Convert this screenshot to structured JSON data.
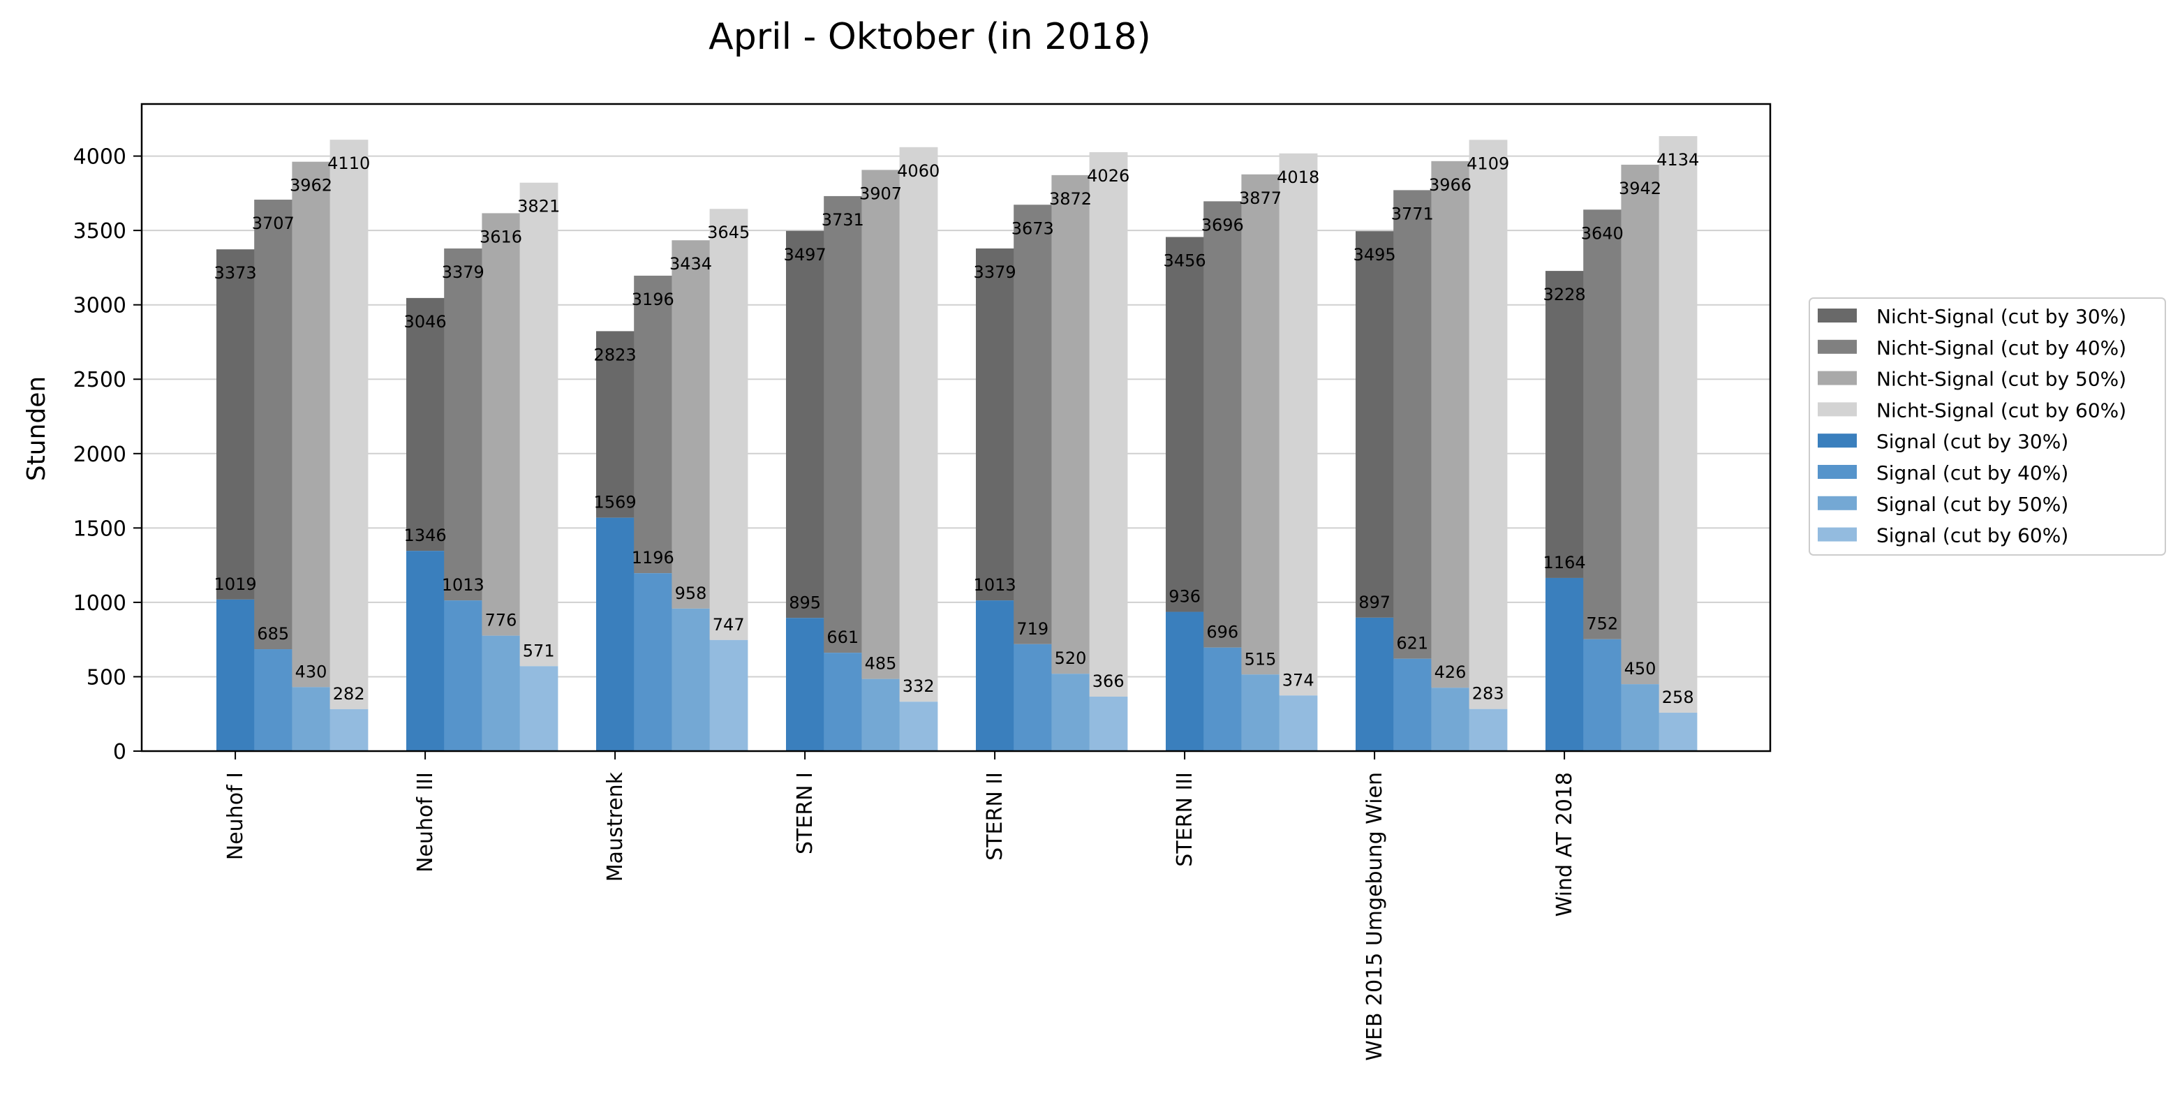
{
  "chart_data": {
    "type": "bar",
    "title": "April - Oktober (in 2018)",
    "ylabel": "Stunden",
    "xlabel": "",
    "ylim": [
      0,
      4350
    ],
    "yticks": [
      0,
      500,
      1000,
      1500,
      2000,
      2500,
      3000,
      3500,
      4000
    ],
    "grid": "horizontal",
    "legend_position": "right",
    "stacked": true,
    "categories": [
      "Neuhof I",
      "Neuhof III",
      "Maustrenk",
      "STERN I",
      "STERN II",
      "STERN III",
      "WEB 2015 Umgebung Wien",
      "Wind AT 2018"
    ],
    "groups": [
      {
        "signal_name": "Signal (cut by 30%)",
        "nicht_name": "Nicht-Signal (cut by 30%)",
        "signal_color": "#3a7fbd",
        "nicht_color": "#696969",
        "signal_values": [
          1019,
          1346,
          1569,
          895,
          1013,
          936,
          897,
          1164
        ],
        "nicht_values": [
          3373,
          3046,
          2823,
          3497,
          3379,
          3456,
          3495,
          3228
        ]
      },
      {
        "signal_name": "Signal (cut by 40%)",
        "nicht_name": "Nicht-Signal (cut by 40%)",
        "signal_color": "#5694cb",
        "nicht_color": "#808080",
        "signal_values": [
          685,
          1013,
          1196,
          661,
          719,
          696,
          621,
          752
        ],
        "nicht_values": [
          3707,
          3379,
          3196,
          3731,
          3673,
          3696,
          3771,
          3640
        ]
      },
      {
        "signal_name": "Signal (cut by 50%)",
        "nicht_name": "Nicht-Signal (cut by 50%)",
        "signal_color": "#74a8d4",
        "nicht_color": "#a9a9a9",
        "signal_values": [
          430,
          776,
          958,
          485,
          520,
          515,
          426,
          450
        ],
        "nicht_values": [
          3962,
          3616,
          3434,
          3907,
          3872,
          3877,
          3966,
          3942
        ]
      },
      {
        "signal_name": "Signal (cut by 60%)",
        "nicht_name": "Nicht-Signal (cut by 60%)",
        "signal_color": "#93bbdf",
        "nicht_color": "#d3d3d3",
        "signal_values": [
          282,
          571,
          747,
          332,
          366,
          374,
          283,
          258
        ],
        "nicht_values": [
          4110,
          3821,
          3645,
          4060,
          4026,
          4018,
          4109,
          4134
        ]
      }
    ],
    "legend_order": [
      "Nicht-Signal (cut by 30%)",
      "Nicht-Signal (cut by 40%)",
      "Nicht-Signal (cut by 50%)",
      "Nicht-Signal (cut by 60%)",
      "Signal (cut by 30%)",
      "Signal (cut by 40%)",
      "Signal (cut by 50%)",
      "Signal (cut by 60%)"
    ]
  }
}
